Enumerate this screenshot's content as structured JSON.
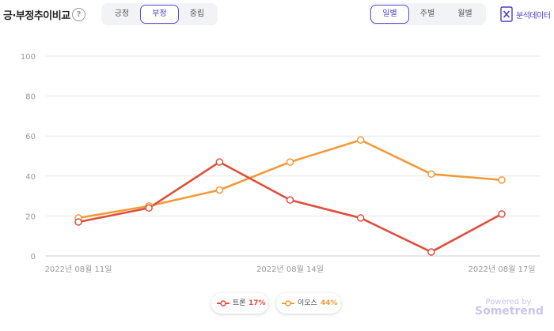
{
  "header": {
    "title": "긍·부정추이비교",
    "help_glyph": "?",
    "sentiment_tabs": [
      {
        "label": "긍정",
        "active": false
      },
      {
        "label": "부정",
        "active": true
      },
      {
        "label": "중립",
        "active": false
      }
    ],
    "period_tabs": [
      {
        "label": "일별",
        "active": true
      },
      {
        "label": "주별",
        "active": false
      },
      {
        "label": "월별",
        "active": false
      }
    ],
    "export_label": "분석데이터",
    "export_icon": "excel-icon"
  },
  "chart_data": {
    "type": "line",
    "y_ticks": [
      "100",
      "80",
      "60",
      "40",
      "20",
      "0"
    ],
    "ylim": [
      0,
      100
    ],
    "x_labels": [
      "2022년 08월 11일",
      "2022년 08월 14일",
      "2022년 08월 17일"
    ],
    "series": [
      {
        "name": "트론",
        "color": "#e04e3c",
        "values": [
          17,
          24,
          47,
          28,
          19,
          2,
          21
        ],
        "percent": "17%"
      },
      {
        "name": "이오스",
        "color": "#f29a38",
        "values": [
          19,
          25,
          33,
          47,
          58,
          41,
          38
        ],
        "percent": "44%"
      }
    ],
    "grid": true
  },
  "branding": {
    "line1": "Powered by",
    "line2": "Sometrend"
  }
}
